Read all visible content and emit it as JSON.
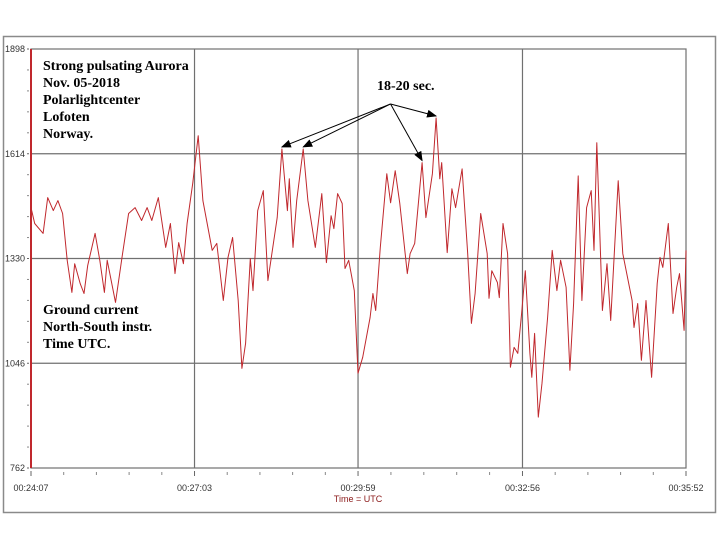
{
  "chart_data": {
    "type": "line",
    "title_lines": [
      "Strong pulsating Aurora",
      "Nov. 05-2018",
      "Polarlightcenter",
      "Lofoten",
      "Norway."
    ],
    "info_lines": [
      "Ground current",
      "North-South instr.",
      "Time UTC."
    ],
    "xlabel": "Time = UTC",
    "ylabel": "",
    "x_unit": "seconds after 00:24:07",
    "xlim": [
      0,
      705
    ],
    "ylim": [
      762,
      1898
    ],
    "x_ticks": [
      {
        "t": 0,
        "label": "00:24:07"
      },
      {
        "t": 176,
        "label": "00:27:03"
      },
      {
        "t": 352,
        "label": "00:29:59"
      },
      {
        "t": 529,
        "label": "00:32:56"
      },
      {
        "t": 705,
        "label": "00:35:52"
      }
    ],
    "y_ticks": [
      1898,
      1614,
      1330,
      1046,
      762
    ],
    "grid": true,
    "colors": {
      "line": "#c0282d",
      "grid": "#707070",
      "yaxis": "#c0282d",
      "frame": "#8a8a8a"
    },
    "annotation": {
      "text": "18-20 sec.",
      "origin": [
        387,
        1749
      ],
      "targets": [
        [
          270,
          1627
        ],
        [
          293,
          1627
        ],
        [
          421,
          1590
        ],
        [
          436,
          1711
        ]
      ]
    },
    "series": [
      {
        "name": "Ground current N-S",
        "x": [
          0,
          4,
          13,
          18,
          24,
          29,
          34,
          39,
          44,
          47,
          53,
          57,
          61,
          69,
          74,
          79,
          82,
          87,
          91,
          98,
          105,
          112,
          119,
          125,
          130,
          137,
          145,
          150,
          155,
          159,
          164,
          168,
          174,
          180,
          185,
          195,
          200,
          207,
          212,
          217,
          223,
          227,
          231,
          236,
          239,
          244,
          250,
          255,
          265,
          270,
          276,
          278,
          282,
          286,
          293,
          298,
          306,
          313,
          318,
          323,
          326,
          330,
          335,
          338,
          342,
          348,
          352,
          357,
          365,
          368,
          371,
          376,
          383,
          387,
          392,
          397,
          405,
          408,
          413,
          421,
          425,
          432,
          436,
          440,
          442,
          448,
          453,
          457,
          464,
          470,
          474,
          478,
          484,
          491,
          493,
          496,
          502,
          504,
          508,
          513,
          516,
          520,
          524,
          528,
          532,
          537,
          539,
          542,
          546,
          550,
          556,
          561,
          566,
          570,
          576,
          580,
          584,
          589,
          593,
          598,
          603,
          606,
          609,
          615,
          620,
          624,
          632,
          637,
          647,
          649,
          653,
          657,
          662,
          668,
          674,
          677,
          680,
          686,
          691,
          695,
          698,
          703,
          705
        ],
        "values": [
          1468,
          1425,
          1398,
          1495,
          1460,
          1487,
          1452,
          1325,
          1238,
          1316,
          1262,
          1235,
          1311,
          1398,
          1325,
          1238,
          1325,
          1262,
          1211,
          1333,
          1452,
          1468,
          1433,
          1468,
          1433,
          1495,
          1360,
          1425,
          1289,
          1373,
          1316,
          1425,
          1533,
          1663,
          1487,
          1352,
          1371,
          1216,
          1333,
          1387,
          1216,
          1032,
          1100,
          1330,
          1243,
          1460,
          1514,
          1270,
          1441,
          1627,
          1460,
          1546,
          1360,
          1487,
          1627,
          1487,
          1360,
          1506,
          1319,
          1446,
          1411,
          1506,
          1479,
          1303,
          1325,
          1243,
          1019,
          1062,
          1170,
          1235,
          1189,
          1360,
          1560,
          1481,
          1568,
          1479,
          1289,
          1343,
          1371,
          1590,
          1441,
          1560,
          1711,
          1546,
          1590,
          1346,
          1519,
          1468,
          1573,
          1343,
          1154,
          1235,
          1452,
          1343,
          1222,
          1297,
          1265,
          1224,
          1425,
          1343,
          1035,
          1089,
          1073,
          1181,
          1297,
          1073,
          1008,
          1127,
          900,
          992,
          1170,
          1352,
          1243,
          1325,
          1252,
          1027,
          1208,
          1554,
          1216,
          1468,
          1514,
          1352,
          1644,
          1189,
          1316,
          1162,
          1541,
          1343,
          1216,
          1143,
          1208,
          1054,
          1216,
          1008,
          1262,
          1333,
          1306,
          1425,
          1181,
          1252,
          1289,
          1135,
          1352
        ]
      }
    ]
  }
}
